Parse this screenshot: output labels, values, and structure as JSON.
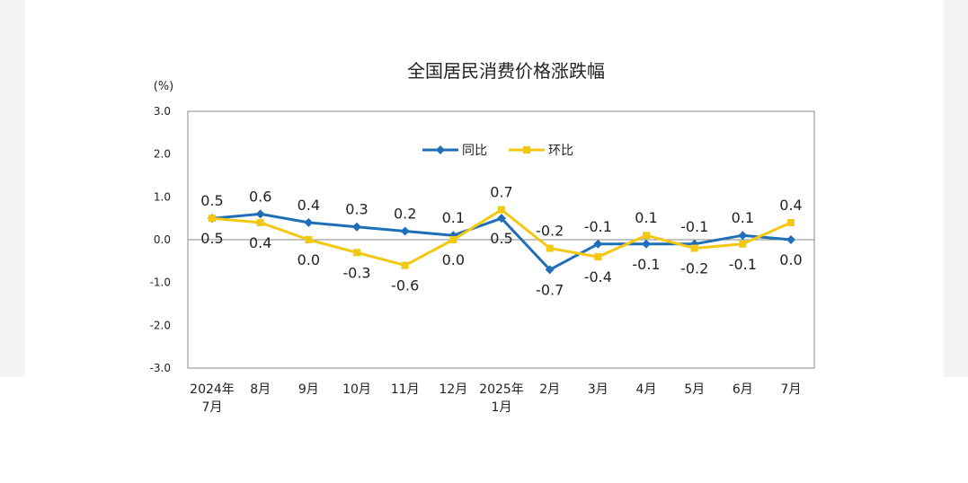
{
  "chart_data": {
    "type": "line",
    "title": "全国居民消费价格涨跌幅",
    "ylabel": "(%)",
    "ylim": [
      -3.0,
      3.0
    ],
    "yticks": [
      "3.0",
      "2.0",
      "1.0",
      "0.0",
      "-1.0",
      "-2.0",
      "-3.0"
    ],
    "categories": [
      [
        "2024年",
        "7月"
      ],
      [
        "8月"
      ],
      [
        "9月"
      ],
      [
        "10月"
      ],
      [
        "11月"
      ],
      [
        "12月"
      ],
      [
        "2025年",
        "1月"
      ],
      [
        "2月"
      ],
      [
        "3月"
      ],
      [
        "4月"
      ],
      [
        "5月"
      ],
      [
        "6月"
      ],
      [
        "7月"
      ]
    ],
    "legend_position": "top-center",
    "series": [
      {
        "name": "同比",
        "color": "#1f6fb8",
        "marker": "diamond",
        "values": [
          0.5,
          0.6,
          0.4,
          0.3,
          0.2,
          0.1,
          0.5,
          -0.7,
          -0.1,
          -0.1,
          -0.1,
          0.1,
          0.0
        ],
        "labels": [
          "0.5",
          "0.6",
          "0.4",
          "0.3",
          "0.2",
          "0.1",
          "0.5",
          "-0.7",
          "-0.1",
          "-0.1",
          "-0.1",
          "0.1",
          "0.0"
        ]
      },
      {
        "name": "环比",
        "color": "#f2c811",
        "marker": "square",
        "values": [
          0.5,
          0.4,
          0.0,
          -0.3,
          -0.6,
          0.0,
          0.7,
          -0.2,
          -0.4,
          0.1,
          -0.2,
          -0.1,
          0.4
        ],
        "labels": [
          "0.5",
          "0.4",
          "0.0",
          "-0.3",
          "-0.6",
          "0.0",
          "0.7",
          "-0.2",
          "-0.4",
          "0.1",
          "-0.2",
          "-0.1",
          "0.4"
        ]
      }
    ]
  }
}
